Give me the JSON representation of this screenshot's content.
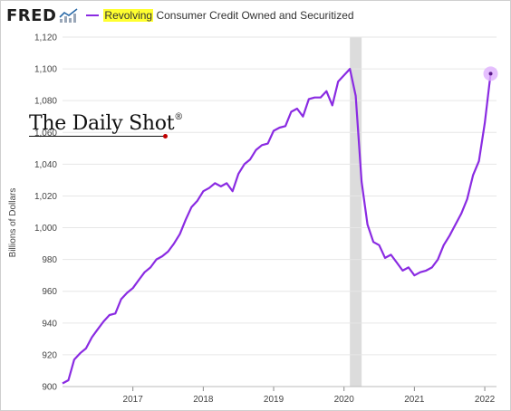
{
  "header": {
    "logo": "FRED",
    "logo_icon": "fred-chart-icon",
    "legend_highlight": "Revolving",
    "legend_rest": " Consumer Credit Owned and Securitized"
  },
  "watermark": {
    "text": "The Daily Shot",
    "mark": "®"
  },
  "colors": {
    "series": "#8a2be2",
    "recession": "#dcdcdc",
    "grid": "#e6e6e6",
    "highlight": "#ffff30",
    "endpoint": "#e0b0ff"
  },
  "chart_data": {
    "type": "line",
    "title": "",
    "xlabel": "",
    "ylabel": "Billions of Dollars",
    "ylim": [
      900,
      1120
    ],
    "yticks": [
      900,
      920,
      940,
      960,
      980,
      1000,
      1020,
      1040,
      1060,
      1080,
      1100,
      1120
    ],
    "ytick_labels": [
      "900",
      "920",
      "940",
      "960",
      "980",
      "1,000",
      "1,020",
      "1,040",
      "1,060",
      "1,080",
      "1,100",
      "1,120"
    ],
    "xlim": [
      "2016-01",
      "2022-03"
    ],
    "xticks": [
      "2017",
      "2018",
      "2019",
      "2020",
      "2021",
      "2022"
    ],
    "grid": "horizontal",
    "recession_shading": {
      "start": "2020-02",
      "end": "2020-04"
    },
    "series": [
      {
        "name": "Revolving Consumer Credit Owned and Securitized",
        "x": [
          "2016-01",
          "2016-02",
          "2016-03",
          "2016-04",
          "2016-05",
          "2016-06",
          "2016-07",
          "2016-08",
          "2016-09",
          "2016-10",
          "2016-11",
          "2016-12",
          "2017-01",
          "2017-02",
          "2017-03",
          "2017-04",
          "2017-05",
          "2017-06",
          "2017-07",
          "2017-08",
          "2017-09",
          "2017-10",
          "2017-11",
          "2017-12",
          "2018-01",
          "2018-02",
          "2018-03",
          "2018-04",
          "2018-05",
          "2018-06",
          "2018-07",
          "2018-08",
          "2018-09",
          "2018-10",
          "2018-11",
          "2018-12",
          "2019-01",
          "2019-02",
          "2019-03",
          "2019-04",
          "2019-05",
          "2019-06",
          "2019-07",
          "2019-08",
          "2019-09",
          "2019-10",
          "2019-11",
          "2019-12",
          "2020-01",
          "2020-02",
          "2020-03",
          "2020-04",
          "2020-05",
          "2020-06",
          "2020-07",
          "2020-08",
          "2020-09",
          "2020-10",
          "2020-11",
          "2020-12",
          "2021-01",
          "2021-02",
          "2021-03",
          "2021-04",
          "2021-05",
          "2021-06",
          "2021-07",
          "2021-08",
          "2021-09",
          "2021-10",
          "2021-11",
          "2021-12",
          "2022-01",
          "2022-02"
        ],
        "values": [
          902,
          904,
          917,
          921,
          924,
          931,
          936,
          941,
          945,
          946,
          955,
          959,
          962,
          967,
          972,
          975,
          980,
          982,
          985,
          990,
          996,
          1005,
          1013,
          1017,
          1023,
          1025,
          1028,
          1026,
          1028,
          1023,
          1034,
          1040,
          1043,
          1049,
          1052,
          1053,
          1061,
          1063,
          1064,
          1073,
          1075,
          1070,
          1081,
          1082,
          1082,
          1086,
          1077,
          1092,
          1096,
          1100,
          1083,
          1029,
          1002,
          991,
          989,
          981,
          983,
          978,
          973,
          975,
          970,
          972,
          973,
          975,
          980,
          989,
          995,
          1002,
          1009,
          1018,
          1033,
          1042,
          1066,
          1097
        ]
      }
    ]
  }
}
